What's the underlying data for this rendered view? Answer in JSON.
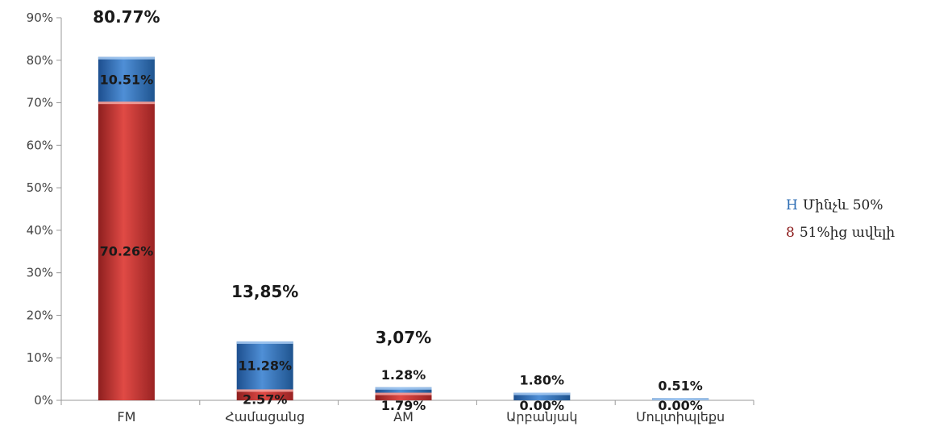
{
  "chart_data": {
    "type": "bar",
    "stacked": true,
    "categories": [
      "FM",
      "Համացանց",
      "AM",
      "Արբանյակ",
      "Մուլտիպլեքս"
    ],
    "series": [
      {
        "name": "51%ից ավելի",
        "values": [
          70.26,
          2.57,
          1.79,
          0.0,
          0.0
        ],
        "labels": [
          "70.26%",
          "2.57%",
          "1.79%",
          "0.00%",
          "0.00%"
        ],
        "color": "#c0392b"
      },
      {
        "name": "Մինչև 50%",
        "values": [
          10.51,
          11.28,
          1.28,
          1.8,
          0.51
        ],
        "labels": [
          "10.51%",
          "11.28%",
          "1.28%",
          "1.80%",
          "0.51%"
        ],
        "color": "#2e6db4"
      }
    ],
    "totals": [
      "80.77%",
      "13,85%",
      "3,07%",
      "",
      ""
    ],
    "yticks": [
      "0%",
      "10%",
      "20%",
      "30%",
      "40%",
      "50%",
      "60%",
      "70%",
      "80%",
      "90%"
    ],
    "ylim": [
      0,
      90
    ],
    "legend_position": "right",
    "grid": false
  },
  "legend": [
    {
      "marker": "H",
      "marker_color": "#2e6db4",
      "label": "Մինչև 50%"
    },
    {
      "marker": "8",
      "marker_color": "#8b1a1a",
      "label": "51%ից ավելի"
    }
  ]
}
